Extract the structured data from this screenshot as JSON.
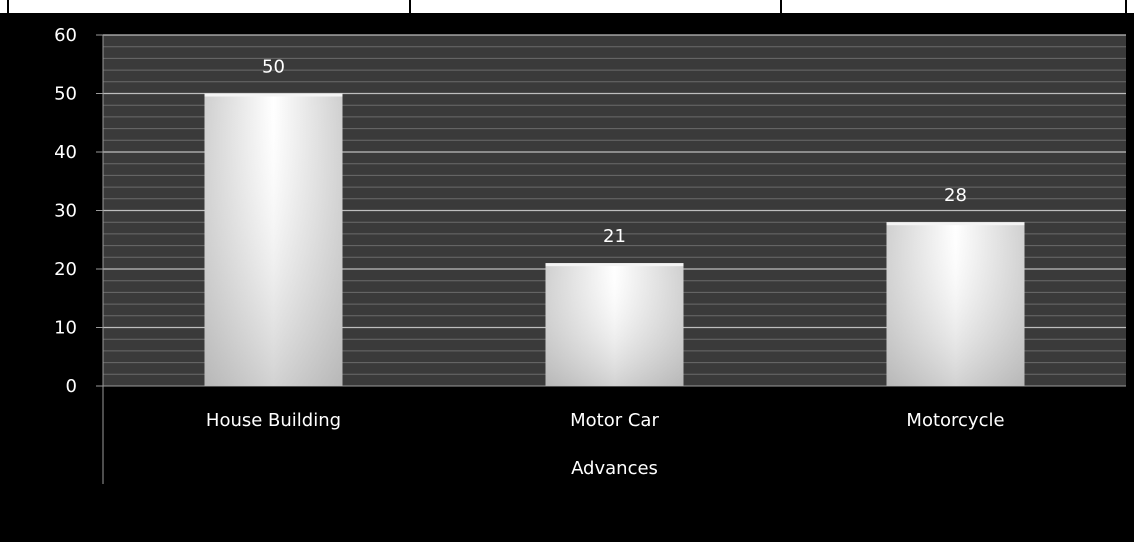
{
  "chart_data": {
    "type": "bar",
    "title": "",
    "xlabel": "Advances",
    "ylabel": "",
    "categories": [
      "House Building",
      "Motor Car",
      "Motorcycle"
    ],
    "values": [
      50,
      21,
      28
    ],
    "data_labels": [
      "50",
      "21",
      "28"
    ],
    "ylim": [
      0,
      60
    ],
    "y_ticks": [
      0,
      10,
      20,
      30,
      40,
      50,
      60
    ],
    "grid": true,
    "legend": "none"
  },
  "colors": {
    "background": "#000000",
    "plot_area": "#3a3a3a",
    "minor_grid": "#6a6a6a",
    "major_grid": "#bdbdbd",
    "bar_light": "#ffffff",
    "bar_dark": "#c9c9c9",
    "text": "#ffffff"
  }
}
